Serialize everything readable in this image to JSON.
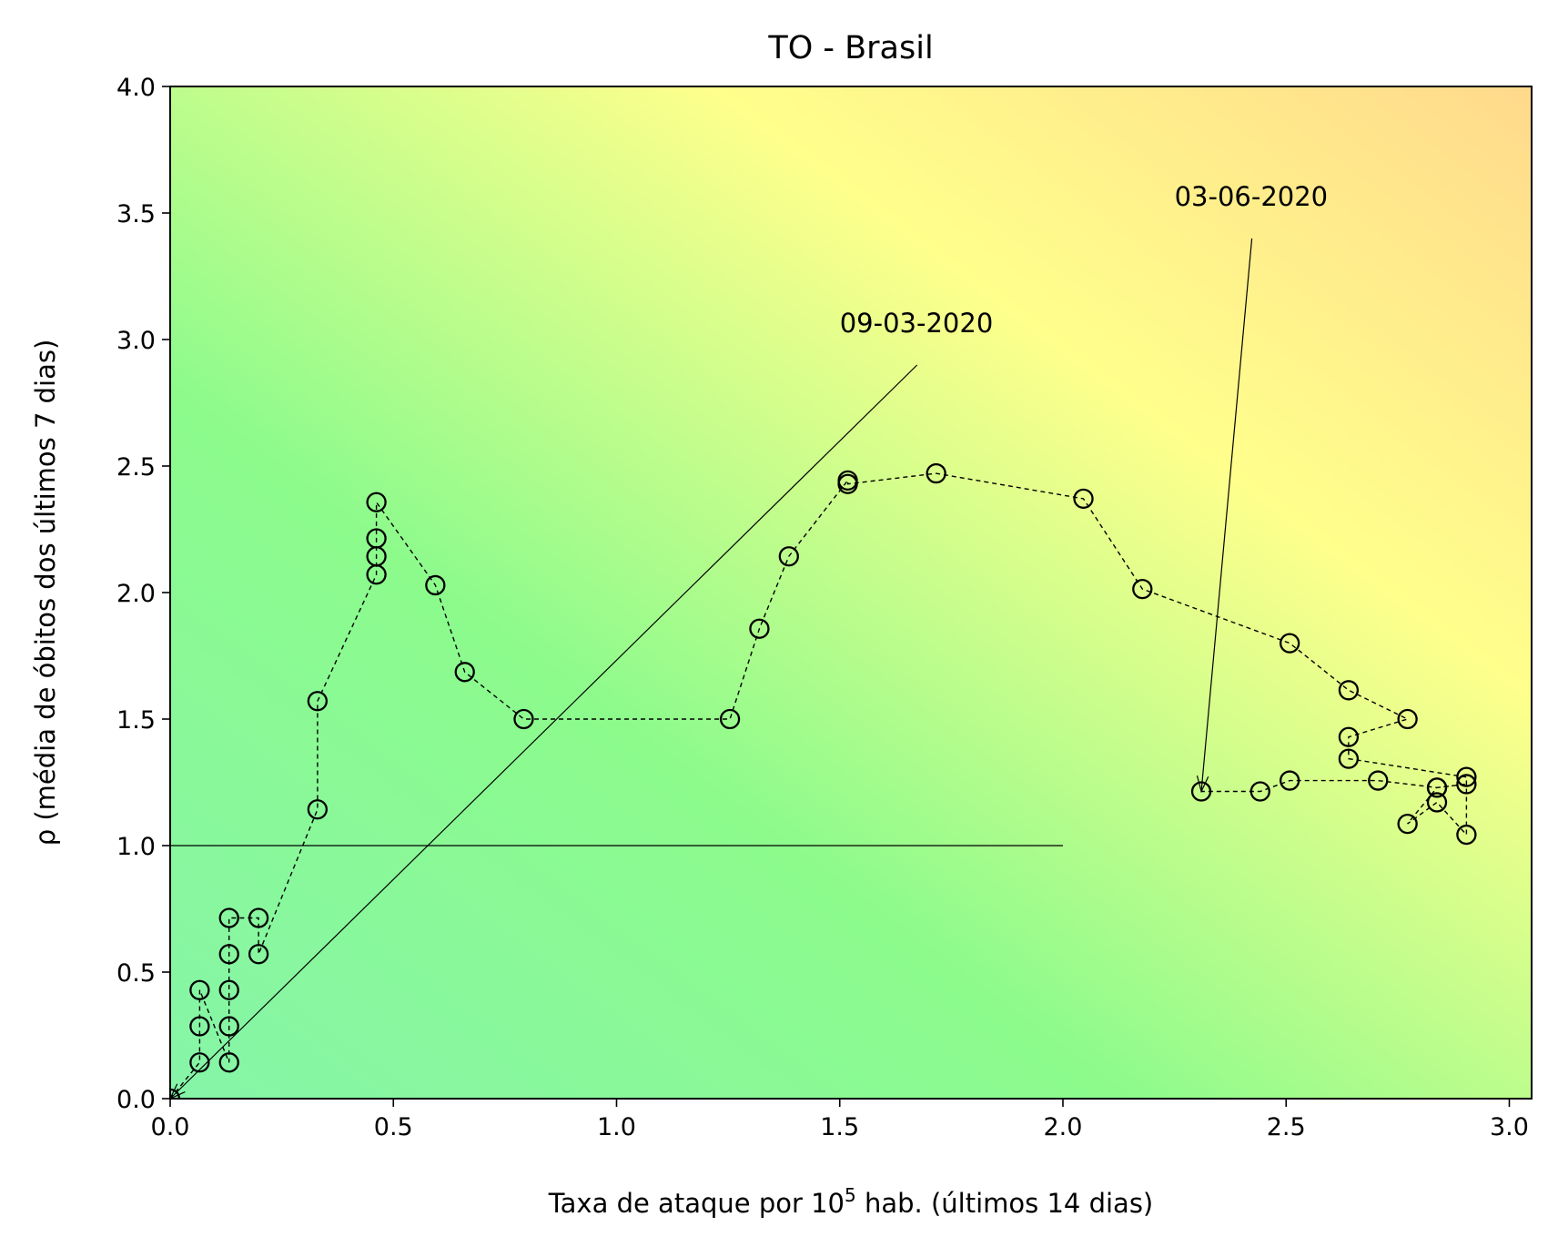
{
  "chart_data": {
    "type": "scatter",
    "title": "TO - Brasil",
    "xlabel": "Taxa de ataque por 10⁵ hab. (últimos 14 dias)",
    "xlabel_parts": [
      "Taxa de ataque por 10",
      "5",
      " hab. (últimos 14 dias)"
    ],
    "ylabel": "ρ (média de óbitos dos últimos 7 dias)",
    "xlim": [
      0.0,
      3.05
    ],
    "ylim": [
      0.0,
      4.0
    ],
    "xticks": [
      "0.0",
      "0.5",
      "1.0",
      "1.5",
      "2.0",
      "2.5",
      "3.0"
    ],
    "yticks": [
      "0.0",
      "0.5",
      "1.0",
      "1.5",
      "2.0",
      "2.5",
      "3.0",
      "3.5",
      "4.0"
    ],
    "grid": false,
    "background": "green-to-yellow-to-orange risk gradient",
    "background_colors": [
      "#86f5a8",
      "#8cfb8c",
      "#ffff8c",
      "#ffd98c"
    ],
    "marker": "open circle",
    "line_style": "dashed",
    "reference_line": {
      "y": 1.0,
      "x_from": 0.0,
      "x_to": 2.0
    },
    "x": [
      0.0,
      0.066,
      0.066,
      0.066,
      0.132,
      0.132,
      0.132,
      0.132,
      0.132,
      0.198,
      0.198,
      0.33,
      0.33,
      0.462,
      0.462,
      0.462,
      0.462,
      0.594,
      0.66,
      0.792,
      1.254,
      1.32,
      1.386,
      1.518,
      1.518,
      1.716,
      2.046,
      2.178,
      2.508,
      2.64,
      2.772,
      2.64,
      2.64,
      2.904,
      2.904,
      2.838,
      2.772,
      2.838,
      2.904,
      2.838,
      2.706,
      2.508,
      2.442,
      2.31
    ],
    "y": [
      0.0,
      0.143,
      0.286,
      0.429,
      0.143,
      0.286,
      0.429,
      0.571,
      0.714,
      0.714,
      0.571,
      1.143,
      1.571,
      2.071,
      2.143,
      2.214,
      2.357,
      2.029,
      1.686,
      1.5,
      1.5,
      1.857,
      2.143,
      2.443,
      2.429,
      2.471,
      2.371,
      2.014,
      1.8,
      1.614,
      1.5,
      1.429,
      1.343,
      1.271,
      1.043,
      1.171,
      1.086,
      1.229,
      1.243,
      1.229,
      1.257,
      1.257,
      1.214,
      1.214
    ],
    "annotations": [
      {
        "text": "09-03-2020",
        "text_x": 1.5,
        "text_y": 3.0,
        "arrow_to_x": 0.0,
        "arrow_to_y": 0.0
      },
      {
        "text": "03-06-2020",
        "text_x": 2.25,
        "text_y": 3.5,
        "arrow_to_x": 2.31,
        "arrow_to_y": 1.214
      }
    ]
  }
}
